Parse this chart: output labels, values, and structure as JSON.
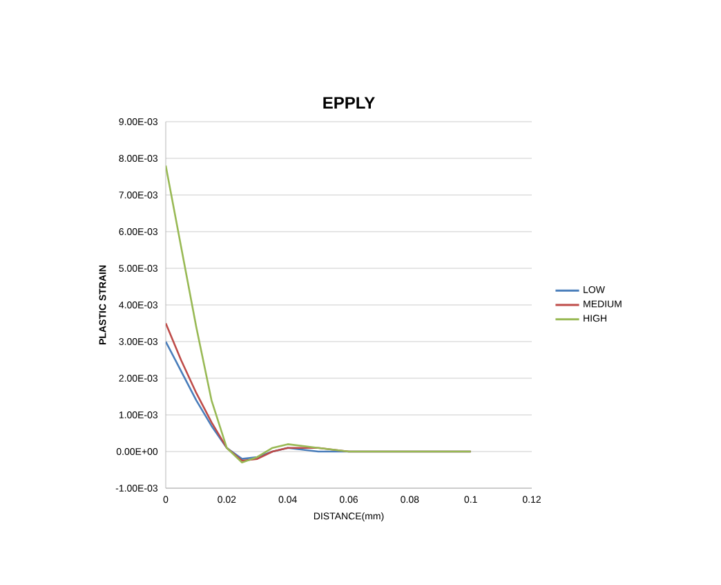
{
  "chart_data": {
    "type": "line",
    "title": "EPPLY",
    "xlabel": "DISTANCE(mm)",
    "ylabel": "PLASTIC STRAIN",
    "x": [
      0,
      0.005,
      0.01,
      0.015,
      0.02,
      0.025,
      0.03,
      0.035,
      0.04,
      0.05,
      0.06,
      0.08,
      0.1
    ],
    "series": [
      {
        "name": "LOW",
        "color": "#4a7ebb",
        "values": [
          0.003,
          0.0022,
          0.0014,
          0.0007,
          0.0001,
          -0.0002,
          -0.00015,
          0,
          0.0001,
          0,
          0,
          0,
          0
        ]
      },
      {
        "name": "MEDIUM",
        "color": "#be4b48",
        "values": [
          0.0035,
          0.0025,
          0.0016,
          0.0008,
          0.0001,
          -0.00025,
          -0.0002,
          0,
          0.0001,
          0.0001,
          0,
          0,
          0
        ]
      },
      {
        "name": "HIGH",
        "color": "#98b954",
        "values": [
          0.0078,
          0.0056,
          0.0034,
          0.0014,
          0.0001,
          -0.0003,
          -0.00015,
          0.0001,
          0.0002,
          0.0001,
          0,
          0,
          0
        ]
      }
    ],
    "xlim": [
      0,
      0.12
    ],
    "xticks": [
      0,
      0.02,
      0.04,
      0.06,
      0.08,
      0.1,
      0.12
    ],
    "ylim": [
      -0.001,
      0.009
    ],
    "yticks": [
      {
        "value": -0.001,
        "label": "-1.00E-03"
      },
      {
        "value": 0,
        "label": "0.00E+00"
      },
      {
        "value": 0.001,
        "label": "1.00E-03"
      },
      {
        "value": 0.002,
        "label": "2.00E-03"
      },
      {
        "value": 0.003,
        "label": "3.00E-03"
      },
      {
        "value": 0.004,
        "label": "4.00E-03"
      },
      {
        "value": 0.005,
        "label": "5.00E-03"
      },
      {
        "value": 0.006,
        "label": "6.00E-03"
      },
      {
        "value": 0.007,
        "label": "7.00E-03"
      },
      {
        "value": 0.008,
        "label": "8.00E-03"
      },
      {
        "value": 0.009,
        "label": "9.00E-03"
      }
    ],
    "grid": "y",
    "legend": "right",
    "marker": "none",
    "line_style": "solid"
  }
}
